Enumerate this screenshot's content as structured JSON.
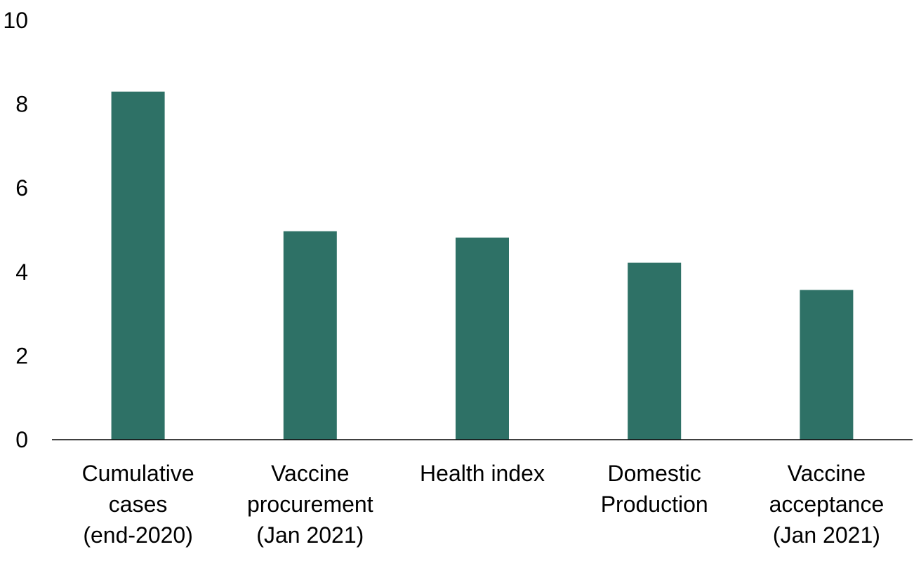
{
  "chart_data": {
    "type": "bar",
    "title": "",
    "xlabel": "",
    "ylabel": "",
    "categories": [
      [
        "Cumulative",
        "cases",
        "(end-2020)"
      ],
      [
        "Vaccine",
        "procurement",
        "(Jan 2021)"
      ],
      [
        "Health index"
      ],
      [
        "Domestic",
        "Production"
      ],
      [
        "Vaccine",
        "acceptance",
        "(Jan 2021)"
      ]
    ],
    "values": [
      8.3,
      4.97,
      4.82,
      4.22,
      3.57
    ],
    "ylim": [
      0,
      10
    ],
    "yticks": [
      0,
      2,
      4,
      6,
      8,
      10
    ],
    "bar_color": "#2e7166",
    "grid": false,
    "legend": "none"
  }
}
